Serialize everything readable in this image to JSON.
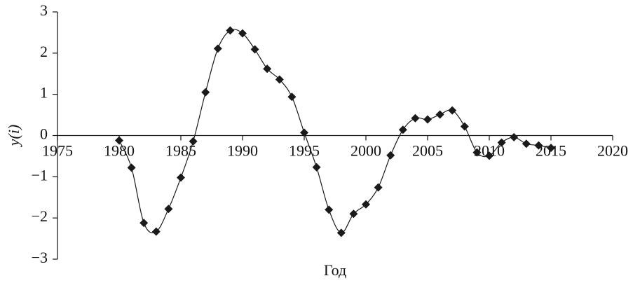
{
  "chart_data": {
    "type": "line",
    "xlabel": "Год",
    "ylabel": "y(i)",
    "x": [
      1980,
      1981,
      1982,
      1983,
      1984,
      1985,
      1986,
      1987,
      1988,
      1989,
      1990,
      1991,
      1992,
      1993,
      1994,
      1995,
      1996,
      1997,
      1998,
      1999,
      2000,
      2001,
      2002,
      2003,
      2004,
      2005,
      2006,
      2007,
      2008,
      2009,
      2010,
      2011,
      2012,
      2013,
      2014,
      2015
    ],
    "series": [
      {
        "color": "#1a1a1a",
        "values": [
          -0.12,
          -0.78,
          -2.12,
          -2.33,
          -1.78,
          -1.02,
          -0.14,
          1.05,
          2.11,
          2.55,
          2.48,
          2.09,
          1.62,
          1.36,
          0.94,
          0.07,
          -0.77,
          -1.8,
          -2.36,
          -1.9,
          -1.67,
          -1.26,
          -0.48,
          0.14,
          0.42,
          0.39,
          0.51,
          0.61,
          0.22,
          -0.41,
          -0.49,
          -0.17,
          -0.04,
          -0.2,
          -0.24,
          -0.3
        ]
      }
    ],
    "xlim": [
      1975,
      2020
    ],
    "xticks": [
      1975,
      1980,
      1985,
      1990,
      1995,
      2000,
      2005,
      2010,
      2015,
      2020
    ],
    "ylim": [
      -3,
      3
    ],
    "yticks": [
      {
        "value": -3,
        "label": "−3"
      },
      {
        "value": -2,
        "label": "−2"
      },
      {
        "value": -1,
        "label": "−1"
      },
      0,
      1,
      2,
      3
    ]
  }
}
